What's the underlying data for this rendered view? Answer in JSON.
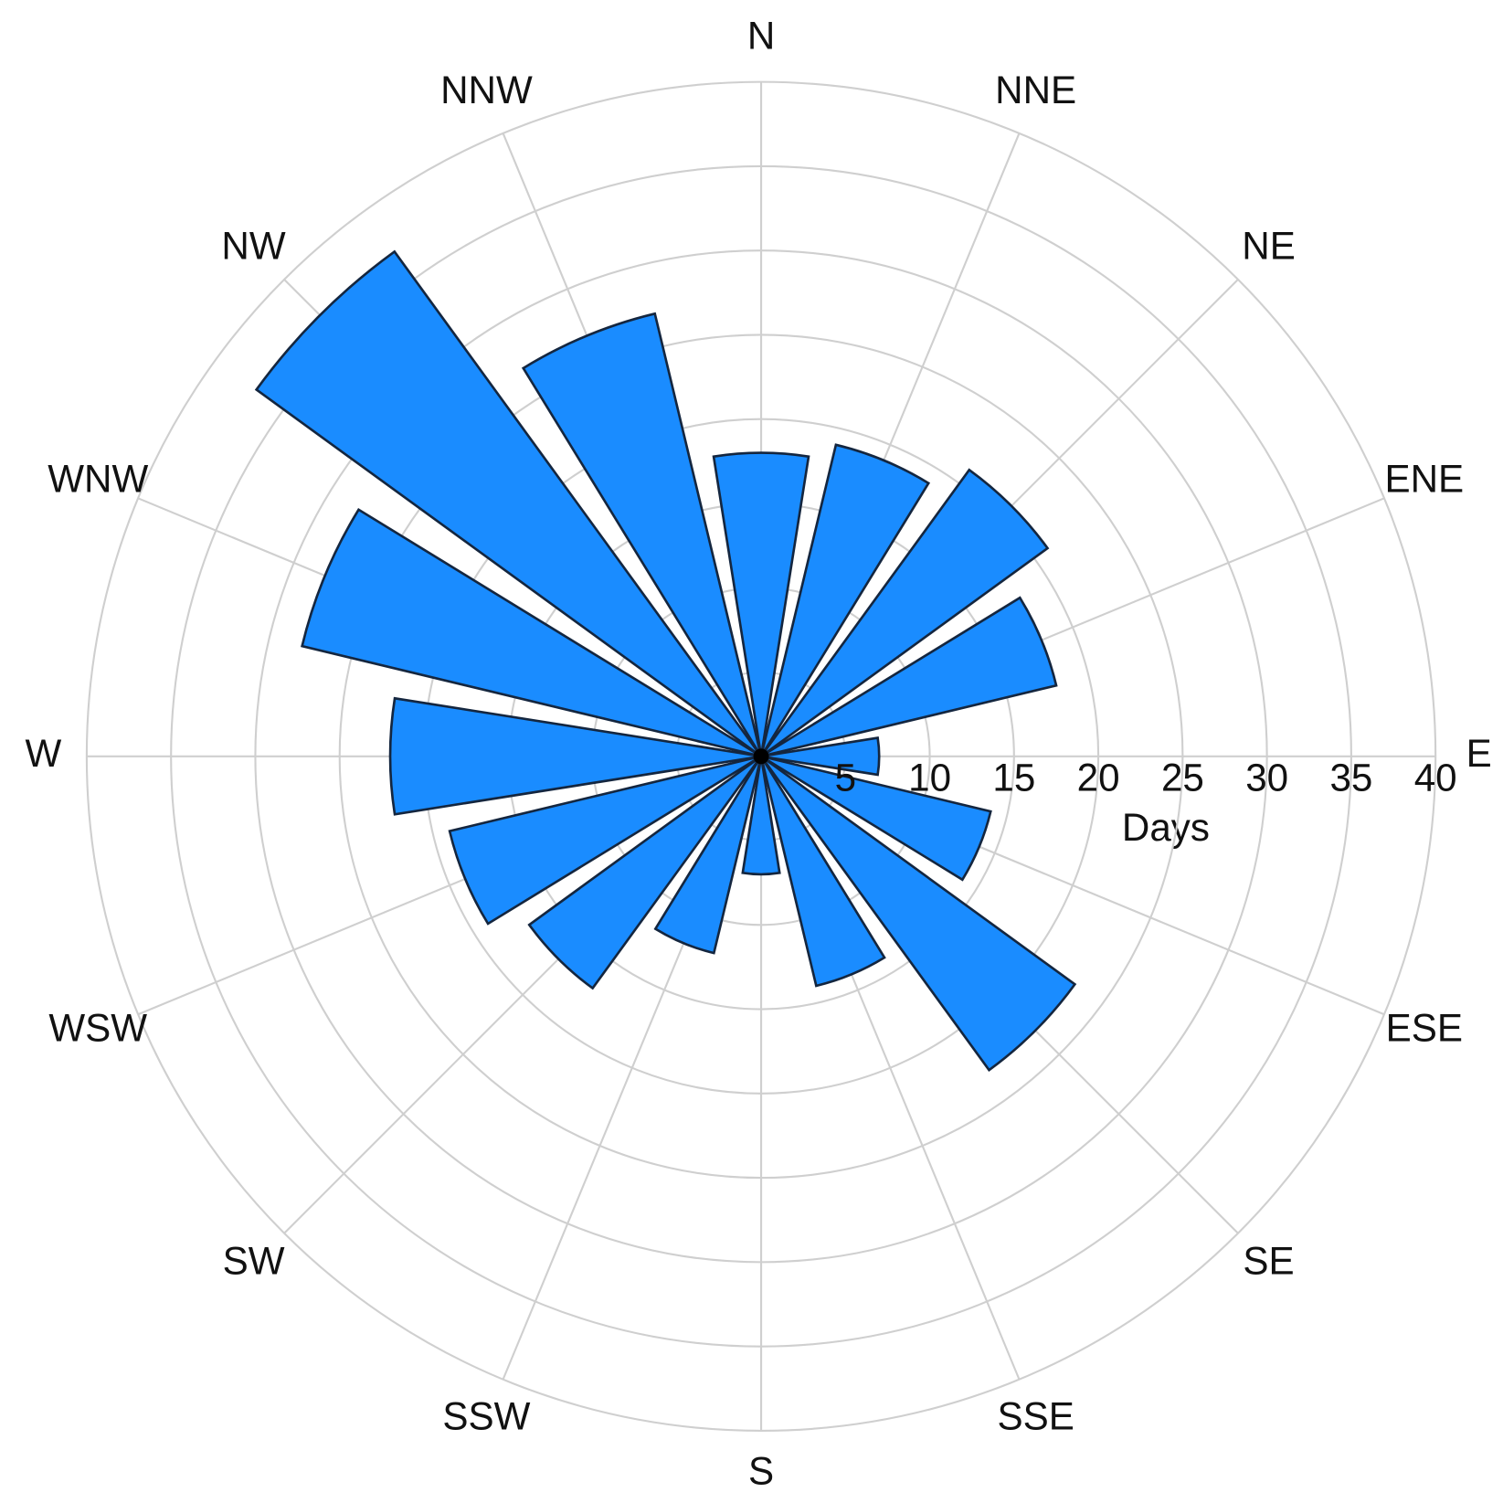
{
  "chart_data": {
    "type": "polar_bar",
    "categories": [
      "N",
      "NNE",
      "NE",
      "ENE",
      "E",
      "ESE",
      "SE",
      "SSE",
      "S",
      "SSW",
      "SW",
      "WSW",
      "W",
      "WNW",
      "NW",
      "NNW"
    ],
    "values": [
      18,
      19,
      21,
      18,
      7,
      14,
      23,
      14,
      7,
      12,
      17,
      19,
      22,
      28,
      37,
      27
    ],
    "color": "#1a8cff",
    "rlim": [
      0,
      40
    ],
    "rticks": [
      5,
      10,
      15,
      20,
      25,
      30,
      35,
      40
    ],
    "axis_label": "Days",
    "grid": true
  }
}
